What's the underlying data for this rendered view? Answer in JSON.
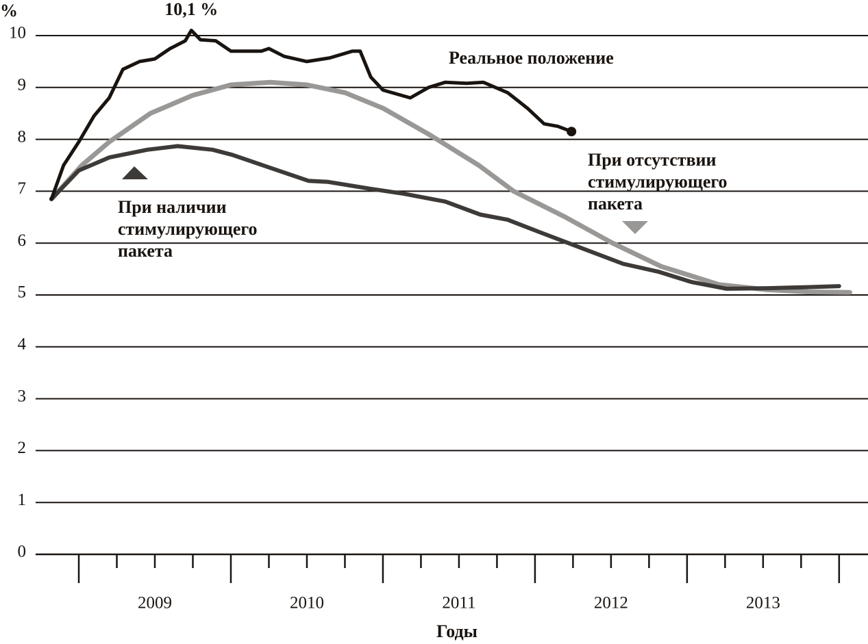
{
  "chart_data": {
    "type": "line",
    "y_unit_label": "%",
    "x_axis_label": "Годы",
    "ylim": [
      0,
      10
    ],
    "yticks": [
      0,
      1,
      2,
      3,
      4,
      5,
      6,
      7,
      8,
      9,
      10
    ],
    "xlim": [
      2008.716,
      2014.19
    ],
    "xticks": [
      {
        "value": 2009.5,
        "label": "2009"
      },
      {
        "value": 2010.5,
        "label": "2010"
      },
      {
        "value": 2011.5,
        "label": "2011"
      },
      {
        "value": 2012.5,
        "label": "2012"
      },
      {
        "value": 2013.5,
        "label": "2013"
      }
    ],
    "x_minor_ticks": [
      2009,
      2009.25,
      2009.5,
      2009.75,
      2010,
      2010.25,
      2010.5,
      2010.75,
      2011,
      2011.25,
      2011.5,
      2011.75,
      2012,
      2012.25,
      2012.5,
      2012.75,
      2013,
      2013.25,
      2013.5,
      2013.75,
      2014
    ],
    "grid": true,
    "peak_label": "10,1 %",
    "series": [
      {
        "name": [
          "Реальное положение"
        ],
        "color": "#1a1410",
        "x": [
          2008.82,
          2008.9,
          2009.0,
          2009.1,
          2009.2,
          2009.29,
          2009.4,
          2009.5,
          2009.6,
          2009.7,
          2009.74,
          2009.8,
          2009.9,
          2010.0,
          2010.2,
          2010.25,
          2010.35,
          2010.5,
          2010.65,
          2010.8,
          2010.85,
          2010.92,
          2011.0,
          2011.18,
          2011.3,
          2011.41,
          2011.55,
          2011.66,
          2011.82,
          2011.95,
          2012.06,
          2012.15,
          2012.24
        ],
        "values": [
          6.85,
          7.5,
          7.95,
          8.45,
          8.8,
          9.35,
          9.5,
          9.55,
          9.75,
          9.9,
          10.1,
          9.92,
          9.9,
          9.7,
          9.7,
          9.75,
          9.6,
          9.5,
          9.57,
          9.7,
          9.7,
          9.2,
          8.95,
          8.8,
          9.0,
          9.1,
          9.08,
          9.1,
          8.9,
          8.6,
          8.3,
          8.25,
          8.15
        ]
      },
      {
        "name": [
          "При отсутствии",
          "стимулирующего",
          "пакета"
        ],
        "color": "#9a9896",
        "x": [
          2008.82,
          2009.02,
          2009.2,
          2009.47,
          2009.75,
          2010.0,
          2010.26,
          2010.5,
          2010.75,
          2011.0,
          2011.3,
          2011.63,
          2011.86,
          2012.2,
          2012.51,
          2012.83,
          2013.21,
          2013.53,
          2013.8,
          2014.07
        ],
        "values": [
          6.85,
          7.5,
          7.95,
          8.5,
          8.85,
          9.05,
          9.1,
          9.05,
          8.9,
          8.6,
          8.1,
          7.5,
          7.0,
          6.5,
          6.0,
          5.55,
          5.2,
          5.1,
          5.06,
          5.05
        ]
      },
      {
        "name": [
          "При наличии",
          "стимулирующего",
          "пакета"
        ],
        "color": "#3d3a38",
        "x": [
          2008.82,
          2009.0,
          2009.2,
          2009.45,
          2009.65,
          2009.88,
          2010.01,
          2010.26,
          2010.51,
          2010.64,
          2010.91,
          2011.14,
          2011.41,
          2011.64,
          2011.82,
          2012.04,
          2012.31,
          2012.58,
          2012.81,
          2013.03,
          2013.26,
          2013.53,
          2013.79,
          2014.0
        ],
        "values": [
          6.85,
          7.4,
          7.65,
          7.8,
          7.87,
          7.8,
          7.7,
          7.45,
          7.2,
          7.18,
          7.05,
          6.95,
          6.8,
          6.55,
          6.45,
          6.2,
          5.9,
          5.6,
          5.45,
          5.25,
          5.12,
          5.13,
          5.15,
          5.17
        ]
      }
    ]
  }
}
